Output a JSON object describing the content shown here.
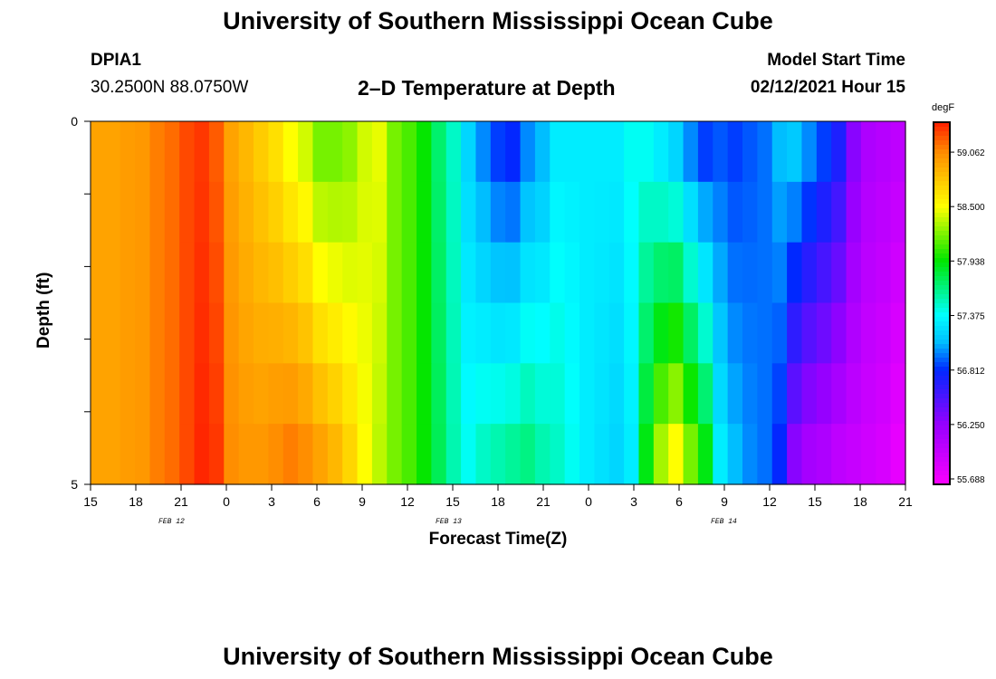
{
  "header": {
    "title": "University of Southern Mississippi Ocean Cube",
    "station": "DPIA1",
    "coords": "30.2500N 88.0750W",
    "plot_title": "2–D Temperature at Depth",
    "model_label": "Model Start Time",
    "model_time": "02/12/2021 Hour 15"
  },
  "footer": {
    "title": "University of Southern Mississippi Ocean Cube"
  },
  "chart_data": {
    "type": "heatmap",
    "xlabel": "Forecast Time(Z)",
    "ylabel": "Depth (ft)",
    "x_tick_labels": [
      "15",
      "18",
      "21",
      "0",
      "3",
      "6",
      "9",
      "12",
      "15",
      "18",
      "21",
      "0",
      "3",
      "6",
      "9",
      "12",
      "15",
      "18",
      "21"
    ],
    "date_labels": [
      "FEB 12",
      "FEB 13",
      "FEB 14"
    ],
    "y_tick_labels": [
      "0",
      "5"
    ],
    "ylim": [
      0,
      5
    ],
    "colorbar": {
      "unit": "degF",
      "tick_labels": [
        "59.062",
        "58.500",
        "57.938",
        "57.375",
        "56.812",
        "56.250",
        "55.688"
      ],
      "tick_values": [
        59.062,
        58.5,
        57.938,
        57.375,
        56.812,
        56.25,
        55.688
      ]
    },
    "forecast_hours": [
      0,
      1,
      2,
      3,
      4,
      5,
      6,
      7,
      8,
      9,
      10,
      11,
      12,
      13,
      14,
      15,
      16,
      17,
      18,
      19,
      20,
      21,
      22,
      23,
      24,
      25,
      26,
      27,
      28,
      29,
      30,
      31,
      32,
      33,
      34,
      35,
      36,
      37,
      38,
      39,
      40,
      41,
      42,
      43,
      44,
      45,
      46,
      47,
      48,
      49,
      50,
      51,
      52,
      53,
      54
    ],
    "depth_levels": [
      0,
      1,
      2,
      3,
      4,
      5
    ],
    "temperature_profile_surface": [
      58.95,
      58.95,
      58.98,
      59.0,
      59.1,
      59.15,
      59.25,
      59.3,
      59.2,
      58.95,
      58.85,
      58.75,
      58.65,
      58.5,
      58.4,
      58.2,
      58.2,
      58.25,
      58.4,
      58.45,
      58.2,
      58.1,
      57.95,
      57.7,
      57.5,
      57.2,
      57.0,
      56.85,
      56.8,
      57.0,
      57.1,
      57.3,
      57.3,
      57.3,
      57.3,
      57.3,
      57.4,
      57.4,
      57.3,
      57.2,
      57.0,
      56.85,
      56.9,
      56.85,
      56.9,
      56.95,
      57.1,
      57.15,
      57.0,
      56.85,
      56.7,
      56.3,
      56.1,
      56.05,
      56.0
    ],
    "temperature_profile_bottom": [
      58.95,
      58.95,
      58.98,
      59.0,
      59.1,
      59.15,
      59.25,
      59.35,
      59.3,
      59.05,
      59.0,
      59.0,
      59.05,
      59.1,
      59.05,
      58.95,
      58.85,
      58.7,
      58.5,
      58.35,
      58.2,
      58.1,
      57.95,
      57.75,
      57.55,
      57.4,
      57.5,
      57.55,
      57.6,
      57.65,
      57.55,
      57.5,
      57.4,
      57.3,
      57.25,
      57.2,
      57.3,
      57.9,
      58.3,
      58.5,
      58.2,
      57.9,
      57.3,
      57.1,
      57.0,
      56.95,
      56.8,
      56.3,
      56.15,
      56.1,
      56.0,
      55.95,
      55.9,
      55.85,
      55.75
    ]
  }
}
